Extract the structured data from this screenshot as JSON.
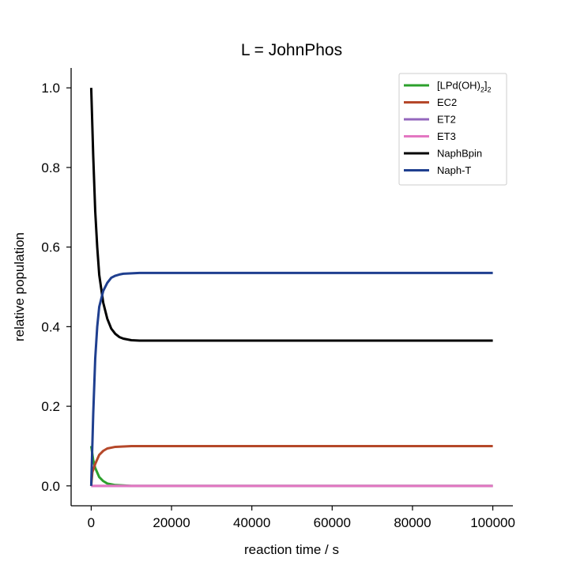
{
  "chart_data": {
    "type": "line",
    "title": "L = JohnPhos",
    "xlabel": "reaction time / s",
    "ylabel": "relative population",
    "xlim": [
      -5000,
      105000
    ],
    "ylim": [
      -0.05,
      1.05
    ],
    "xticks": [
      0,
      20000,
      40000,
      60000,
      80000,
      100000
    ],
    "xtick_labels": [
      "0",
      "20000",
      "40000",
      "60000",
      "80000",
      "100000"
    ],
    "yticks": [
      0.0,
      0.2,
      0.4,
      0.6,
      0.8,
      1.0
    ],
    "ytick_labels": [
      "0.0",
      "0.2",
      "0.4",
      "0.6",
      "0.8",
      "1.0"
    ],
    "grid": false,
    "legend_position": "top-right",
    "series": [
      {
        "name": "[LPd(OH)2]2",
        "color": "#2ca02c",
        "x": [
          0,
          500,
          1000,
          2000,
          3000,
          4000,
          6000,
          8000,
          10000,
          20000,
          100000
        ],
        "y": [
          0.1,
          0.065,
          0.045,
          0.022,
          0.012,
          0.006,
          0.002,
          0.001,
          0.0,
          0.0,
          0.0
        ]
      },
      {
        "name": "EC2",
        "color": "#b5482a",
        "x": [
          0,
          300,
          1000,
          2000,
          3000,
          4000,
          6000,
          8000,
          10000,
          20000,
          100000
        ],
        "y": [
          0.0,
          0.035,
          0.055,
          0.078,
          0.088,
          0.094,
          0.098,
          0.099,
          0.1,
          0.1,
          0.1
        ]
      },
      {
        "name": "ET2",
        "color": "#9467bd",
        "x": [
          0,
          100000
        ],
        "y": [
          0.0,
          0.0
        ]
      },
      {
        "name": "ET3",
        "color": "#e377c2",
        "x": [
          0,
          100000
        ],
        "y": [
          0.0,
          0.0
        ]
      },
      {
        "name": "NaphBpin",
        "color": "#000000",
        "x": [
          0,
          500,
          1000,
          1500,
          2000,
          3000,
          4000,
          5000,
          6000,
          7000,
          8000,
          10000,
          12000,
          20000,
          100000
        ],
        "y": [
          1.0,
          0.83,
          0.69,
          0.6,
          0.53,
          0.46,
          0.42,
          0.395,
          0.382,
          0.374,
          0.37,
          0.366,
          0.365,
          0.365,
          0.365
        ]
      },
      {
        "name": "Naph-T",
        "color": "#1f3f8f",
        "x": [
          0,
          500,
          1000,
          1500,
          2000,
          3000,
          4000,
          5000,
          6000,
          7000,
          8000,
          10000,
          12000,
          20000,
          100000
        ],
        "y": [
          0.0,
          0.18,
          0.32,
          0.4,
          0.45,
          0.49,
          0.51,
          0.523,
          0.528,
          0.531,
          0.533,
          0.534,
          0.535,
          0.535,
          0.535
        ]
      }
    ],
    "legend_labels": [
      {
        "main": "[LPd(OH)",
        "sub": "2",
        "close": "]",
        "sub2": "2"
      },
      {
        "main": "EC2"
      },
      {
        "main": "ET2"
      },
      {
        "main": "ET3"
      },
      {
        "main": "NaphBpin"
      },
      {
        "main": "Naph-T"
      }
    ]
  }
}
